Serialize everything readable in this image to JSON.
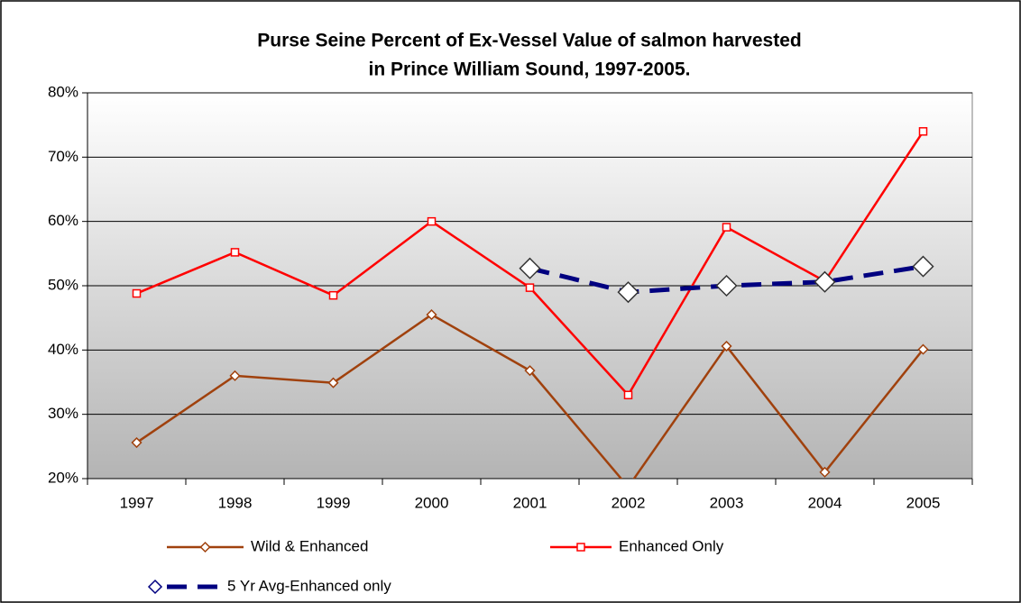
{
  "chart_data": {
    "type": "line",
    "title": [
      "Purse Seine Percent of Ex-Vessel Value of salmon harvested",
      "in Prince William Sound, 1997-2005."
    ],
    "categories": [
      "1997",
      "1998",
      "1999",
      "2000",
      "2001",
      "2002",
      "2003",
      "2004",
      "2005"
    ],
    "series": [
      {
        "name": "Wild & Enhanced",
        "color": "#a0410d",
        "marker": "diamond",
        "values": [
          25.6,
          36.0,
          34.9,
          45.5,
          36.8,
          18.7,
          40.6,
          21.0,
          40.1
        ]
      },
      {
        "name": "Enhanced Only",
        "color": "#ff0000",
        "marker": "square",
        "values": [
          48.8,
          55.2,
          48.5,
          60.0,
          49.7,
          33.0,
          59.1,
          50.7,
          74.0
        ]
      },
      {
        "name": "5 Yr Avg-Enhanced only",
        "color": "#000080",
        "marker": "diamond-large",
        "dashed": true,
        "values": [
          null,
          null,
          null,
          null,
          52.7,
          49.0,
          50.0,
          50.6,
          53.0
        ]
      }
    ],
    "ylim": [
      20,
      80
    ],
    "yticks": [
      {
        "value": 20,
        "label": "20%"
      },
      {
        "value": 30,
        "label": "30%"
      },
      {
        "value": 40,
        "label": "40%"
      },
      {
        "value": 50,
        "label": "50%"
      },
      {
        "value": 60,
        "label": "60%"
      },
      {
        "value": 70,
        "label": "70%"
      },
      {
        "value": 80,
        "label": "80%"
      }
    ],
    "grid": true
  }
}
